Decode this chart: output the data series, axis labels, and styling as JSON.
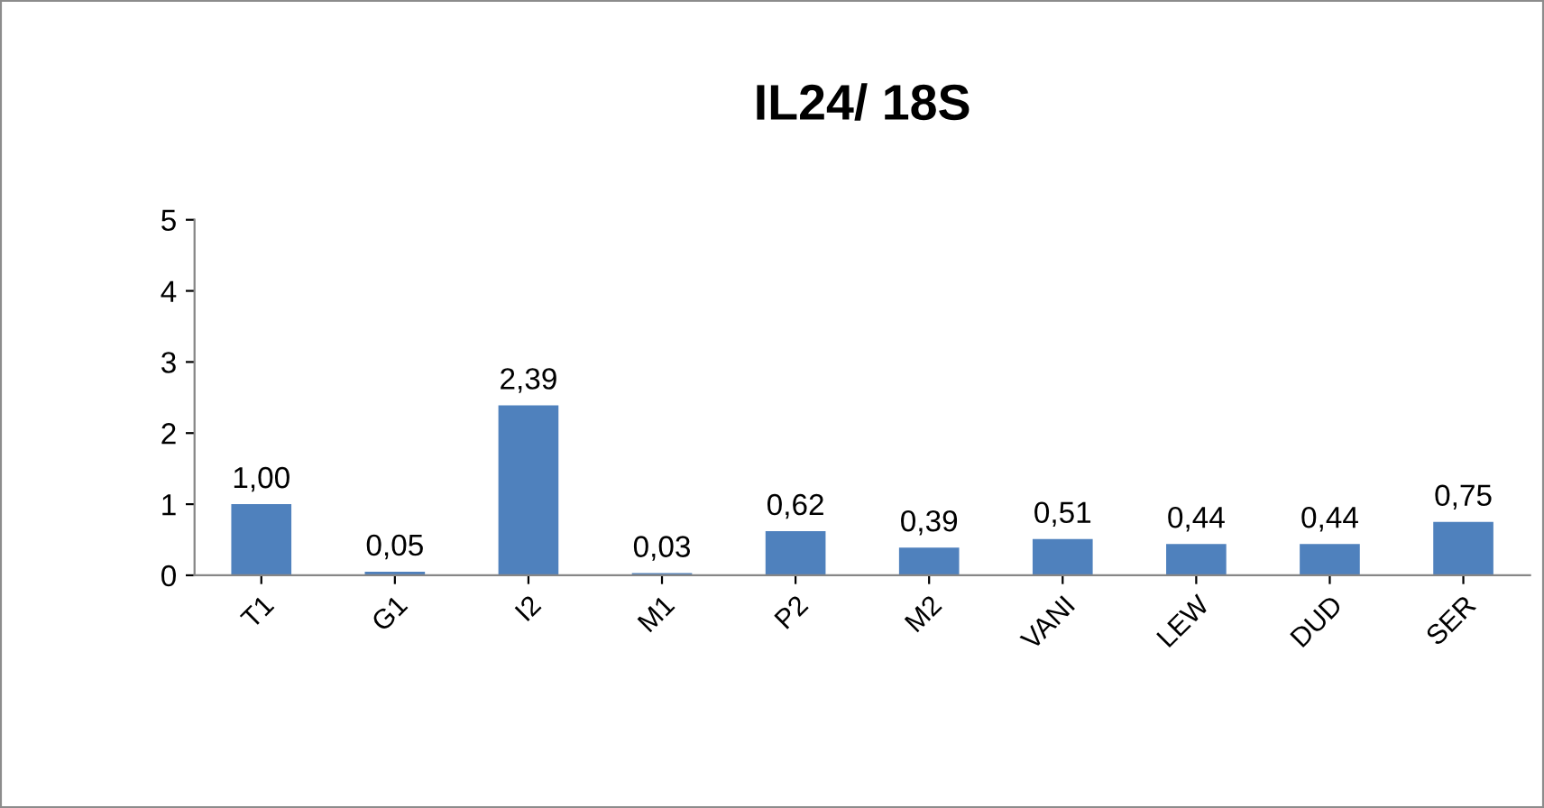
{
  "chart_data": {
    "type": "bar",
    "title": "IL24/ 18S",
    "categories": [
      "T1",
      "G1",
      "I2",
      "M1",
      "P2",
      "M2",
      "VANI",
      "LEW",
      "DUD",
      "SER"
    ],
    "values": [
      1.0,
      0.05,
      2.39,
      0.03,
      0.62,
      0.39,
      0.51,
      0.44,
      0.44,
      0.75
    ],
    "value_labels": [
      "1,00",
      "0,05",
      "2,39",
      "0,03",
      "0,62",
      "0,39",
      "0,51",
      "0,44",
      "0,44",
      "0,75"
    ],
    "color": "#4f81bd",
    "ylim": [
      0,
      5
    ],
    "yticks": [
      0,
      1,
      2,
      3,
      4,
      5
    ],
    "grid": false,
    "legend": false
  }
}
